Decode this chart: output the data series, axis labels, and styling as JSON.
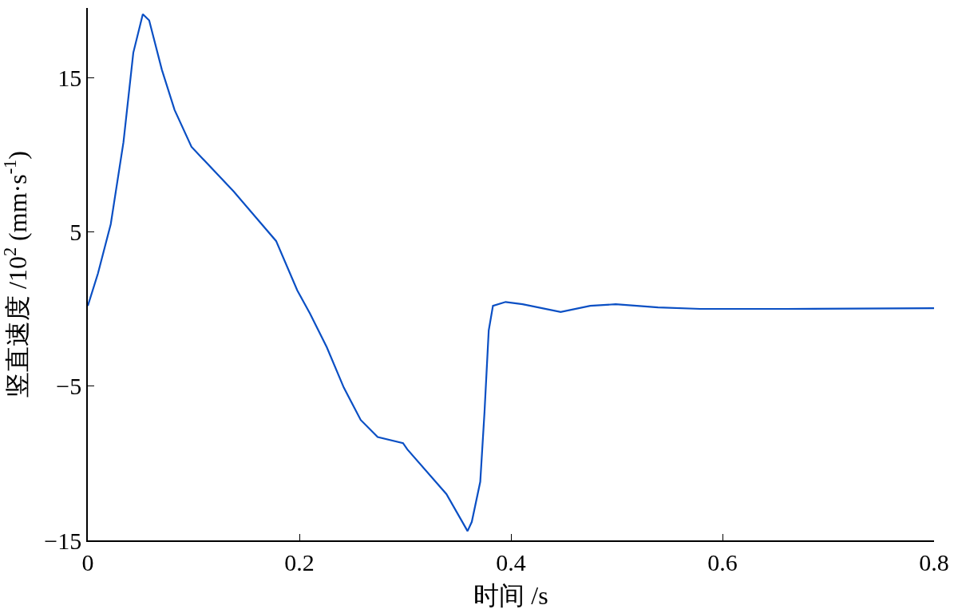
{
  "chart_data": {
    "type": "line",
    "xlabel": "时间 /s",
    "ylabel": "竖直速度 /10$^{2}$ (mm·s$^{-1}$)",
    "x": [
      0,
      0.0096,
      0.0217,
      0.0337,
      0.043,
      0.052,
      0.058,
      0.07,
      0.082,
      0.098,
      0.138,
      0.178,
      0.198,
      0.21,
      0.226,
      0.242,
      0.258,
      0.274,
      0.298,
      0.302,
      0.339,
      0.359,
      0.363,
      0.371,
      0.375,
      0.379,
      0.383,
      0.395,
      0.411,
      0.447,
      0.475,
      0.499,
      0.539,
      0.579,
      0.66,
      0.8
    ],
    "series": [
      {
        "color": "#0a4fc4",
        "values": [
          0.2,
          2.3,
          5.5,
          10.8,
          16.6,
          19.1,
          18.7,
          15.5,
          12.9,
          10.5,
          7.6,
          4.4,
          1.2,
          -0.3,
          -2.5,
          -5.1,
          -7.2,
          -8.3,
          -8.7,
          -9.1,
          -12.0,
          -14.4,
          -13.8,
          -11.2,
          -6.7,
          -1.4,
          0.2,
          0.45,
          0.3,
          -0.2,
          0.2,
          0.3,
          0.1,
          0.0,
          0.0,
          0.05
        ]
      }
    ],
    "xlim": [
      0,
      0.8
    ],
    "xticks": [
      0,
      0.2,
      0.4,
      0.6,
      0.8
    ],
    "ylim": [
      -15,
      19.5
    ],
    "yticks": [
      {
        "value": -15,
        "label": "−15"
      },
      {
        "value": -5,
        "label": "−5"
      },
      5,
      15
    ],
    "marker": "none",
    "line_style": "solid"
  }
}
